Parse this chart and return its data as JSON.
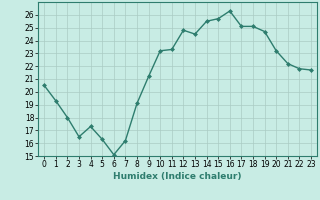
{
  "x": [
    0,
    1,
    2,
    3,
    4,
    5,
    6,
    7,
    8,
    9,
    10,
    11,
    12,
    13,
    14,
    15,
    16,
    17,
    18,
    19,
    20,
    21,
    22,
    23
  ],
  "y": [
    20.5,
    19.3,
    18.0,
    16.5,
    17.3,
    16.3,
    15.1,
    16.2,
    19.1,
    21.2,
    23.2,
    23.3,
    24.8,
    24.5,
    25.5,
    25.7,
    26.3,
    25.1,
    25.1,
    24.7,
    23.2,
    22.2,
    21.8,
    21.7
  ],
  "line_color": "#2e7d6e",
  "marker": "D",
  "marker_size": 2.0,
  "bg_color": "#c8ece4",
  "grid_color": "#aaccc4",
  "xlabel": "Humidex (Indice chaleur)",
  "xlim": [
    -0.5,
    23.5
  ],
  "ylim": [
    15,
    27
  ],
  "yticks": [
    15,
    16,
    17,
    18,
    19,
    20,
    21,
    22,
    23,
    24,
    25,
    26
  ],
  "xticks": [
    0,
    1,
    2,
    3,
    4,
    5,
    6,
    7,
    8,
    9,
    10,
    11,
    12,
    13,
    14,
    15,
    16,
    17,
    18,
    19,
    20,
    21,
    22,
    23
  ],
  "xlabel_fontsize": 6.5,
  "tick_fontsize": 5.5,
  "line_width": 1.0,
  "spine_color": "#2e7d6e"
}
